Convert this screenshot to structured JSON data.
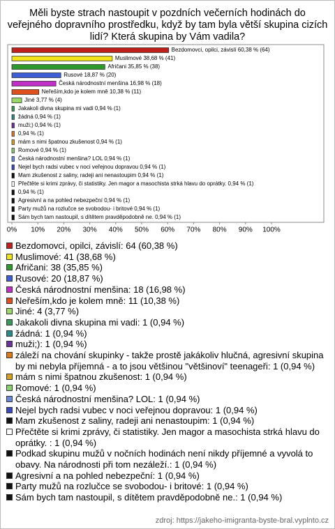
{
  "chart_data": {
    "type": "bar",
    "title": "Měli byste strach nastoupit v pozdních večerních hodinách do veřejného dopravního prostředku, když by tam byla větší skupina cizích lidí? Která skupina by Vám vadila?",
    "values": [
      60.38,
      38.68,
      35.85,
      18.87,
      16.98,
      10.38,
      3.77,
      0.94,
      0.94,
      0.94,
      0.94,
      0.94,
      0.94,
      0.94,
      0.94,
      0.94,
      0.94,
      0.94,
      0.94,
      0.94,
      0.94
    ],
    "value_labels": [
      "Bezdomovci, opilci, závislí 60,38 % (64)",
      "Muslimové 38,68 % (41)",
      "Afričani 35,85 % (38)",
      "Rusové 18,87 % (20)",
      "Česká národnostní menšina 16,98 % (18)",
      "Neřeším,kdo je kolem mně 10,38 % (11)",
      "Jiné 3,77 % (4)",
      "Jakakoli divna skupina mi vadi 0,94 % (1)",
      "žádná 0,94 % (1)",
      "muži;) 0,94 % (1)",
      "0,94 % (1)",
      "mám s nimi špatnou zkušenost 0,94 % (1)",
      "Romové 0,94 % (1)",
      "Česká národnostní menšina? LOL 0,94 % (1)",
      "Nejel bych radsi vubec v noci veřejnou dopravou 0,94 % (1)",
      "Mam zkušenost z saliny, radeji ani nenastoupim 0,94 % (1)",
      "Přečtěte si krimi zprávy, či statistiky. Jen magor a masochista strká hlavu do oprátky.  0,94 % (1)",
      "0,94 % (1)",
      "Agresivní a na pohled nebezpeční 0,94 % (1)",
      "Party mužů na rozlučce se svobodou- i britové 0,94 % (1)",
      "Sám bych tam nastoupil, s dítětem pravděpodobně ne. 0,94 % (1)"
    ],
    "legend_labels": [
      "Bezdomovci, opilci, závislí: 64 (60,38 %)",
      "Muslimové: 41 (38,68 %)",
      "Afričani: 38 (35,85 %)",
      "Rusové: 20 (18,87 %)",
      "Česká národnostní menšina: 18 (16,98 %)",
      "Neřeším,kdo je kolem mně: 11 (10,38 %)",
      "Jiné: 4 (3,77 %)",
      "Jakakoli divna skupina mi vadi: 1 (0,94 %)",
      "žádná: 1 (0,94 %)",
      "muži;): 1 (0,94 %)",
      "záleží na chování skupinky - takže prostě jakákoliv hlučná, agresivní skupina by mi nebyla příjemná - a to jsou většinou \"většinoví\" teenageři: 1 (0,94 %)",
      "mám s nimi špatnou zkušenost: 1 (0,94 %)",
      "Romové: 1 (0,94 %)",
      "Česká národnostní menšina? LOL: 1 (0,94 %)",
      "Nejel bych radsi vubec v noci veřejnou dopravou: 1 (0,94 %)",
      "Mam zkušenost z saliny, radeji ani nenastoupim: 1 (0,94 %)",
      "Přečtěte si krimi zprávy, či statistiky. Jen magor a masochista strká hlavu do oprátky. : 1 (0,94 %)",
      "Podkad skupinu mužů v nočních hodinách není nikdy příjemné a vyvolá to obavy. Na národnosti při tom nezáleží.: 1 (0,94 %)",
      "Agresivní a na pohled nebezpeční: 1 (0,94 %)",
      "Party mužů na rozlučce se svobodou- i britové: 1 (0,94 %)",
      "Sám bych tam nastoupil, s dítětem pravděpodobně ne.: 1 (0,94 %)"
    ],
    "colors": [
      "#c0201c",
      "#f2e21a",
      "#2e9a2e",
      "#3c5fd8",
      "#c030c8",
      "#e0501c",
      "#9ad86a",
      "#3a9a5a",
      "#2a8a8a",
      "#7030a0",
      "#e07a18",
      "#d8a020",
      "#8ad070",
      "#6a8ae0",
      "#3a4ac0",
      "#111111",
      "#ffffff",
      "#111111",
      "#111111",
      "#111111",
      "#111111"
    ],
    "xlim": [
      0,
      100
    ],
    "xticks": [
      {
        "value": 0,
        "label": "0%"
      },
      {
        "value": 10,
        "label": "10%"
      },
      {
        "value": 20,
        "label": "20%"
      },
      {
        "value": 30,
        "label": "30%"
      },
      {
        "value": 40,
        "label": "40%"
      },
      {
        "value": 50,
        "label": "50%"
      },
      {
        "value": 60,
        "label": "60%"
      },
      {
        "value": 70,
        "label": "70%"
      },
      {
        "value": 80,
        "label": "80%"
      },
      {
        "value": 90,
        "label": "90%"
      },
      {
        "value": 100,
        "label": "100%"
      }
    ],
    "source": "zdroj: https://jakeho-imigranta-byste-bral.vyplnto.cz"
  }
}
